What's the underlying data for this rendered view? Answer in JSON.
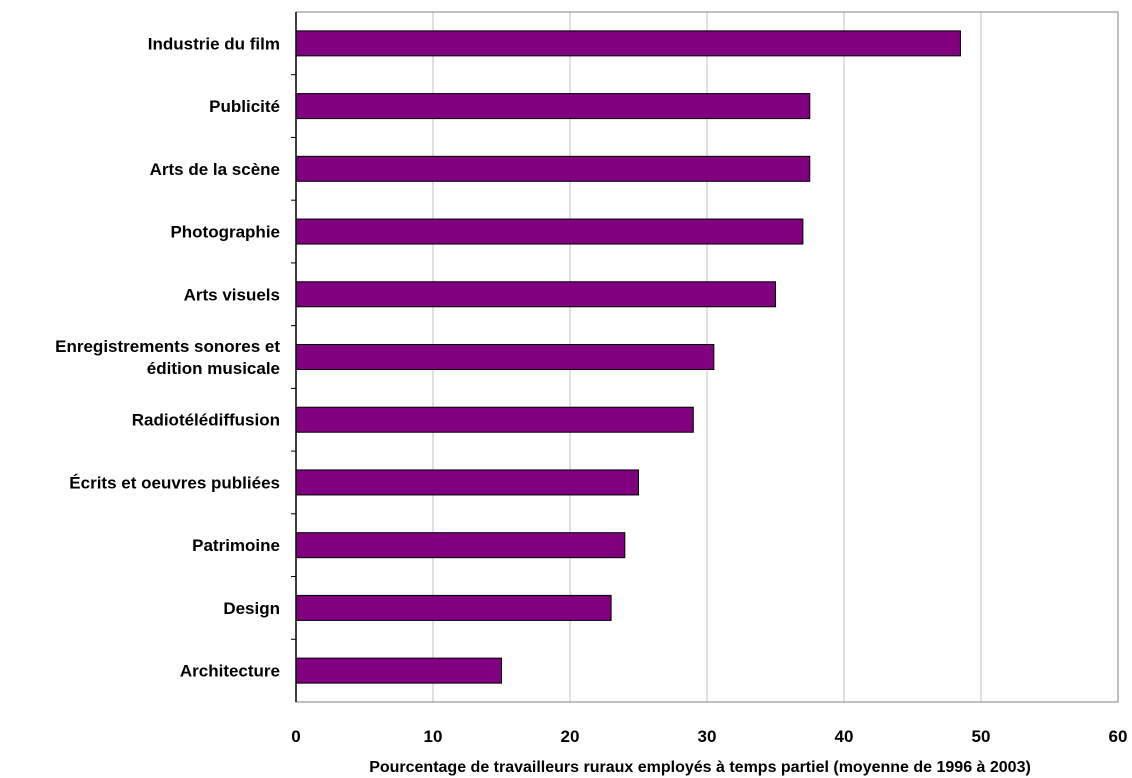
{
  "chart_data": {
    "type": "bar",
    "orientation": "horizontal",
    "title": "",
    "xlabel": "Pourcentage de travailleurs ruraux employés à temps partiel (moyenne de 1996 à 2003)",
    "ylabel": "",
    "categories": [
      [
        "Industrie du film"
      ],
      [
        "Publicité"
      ],
      [
        "Arts de la scène"
      ],
      [
        "Photographie"
      ],
      [
        "Arts visuels"
      ],
      [
        "Enregistrements sonores et",
        "édition musicale"
      ],
      [
        "Radiotélédiffusion"
      ],
      [
        "Écrits et oeuvres publiées"
      ],
      [
        "Patrimoine"
      ],
      [
        "Design"
      ],
      [
        "Architecture"
      ]
    ],
    "values": [
      48.5,
      37.5,
      37.5,
      37,
      35,
      30.5,
      29,
      25,
      24,
      23,
      15
    ],
    "xlim": [
      0,
      60
    ],
    "xticks": [
      "0",
      "10",
      "20",
      "30",
      "40",
      "50",
      "60"
    ],
    "grid": true,
    "legend": "none",
    "colors": {
      "bar": "#800080",
      "bar_stroke": "#000000",
      "grid": "#c0c0c0",
      "axis": "#000000"
    }
  }
}
